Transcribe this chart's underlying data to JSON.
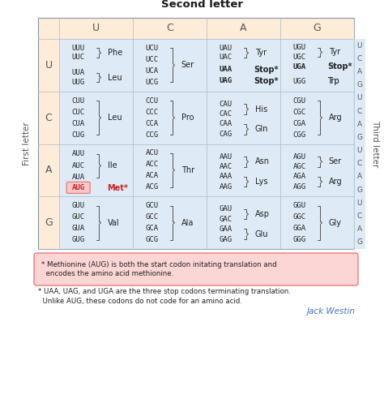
{
  "title": "Second letter",
  "first_letter_label": "First letter",
  "third_letter_label": "Third letter",
  "second_letters": [
    "U",
    "C",
    "A",
    "G"
  ],
  "first_letters": [
    "U",
    "C",
    "A",
    "G"
  ],
  "third_letters": [
    "U",
    "C",
    "A",
    "G"
  ],
  "bg_color": "#ffffff",
  "header_bg": "#fdecd8",
  "cell_bg": "#deeaf5",
  "row_header_bg": "#fdecd8",
  "note1_bg": "#fcd5d5",
  "note1_border": "#e87070",
  "title_fontsize": 9.5,
  "header_fontsize": 9,
  "row_header_fontsize": 9,
  "cell_fontsize": 6.5,
  "amino_fontsize": 7,
  "note_fontsize": 6.2,
  "attr_fontsize": 7.5,
  "label_fontsize": 7.5,
  "note1": "* Methionine (AUG) is both the start codon initating translation and\n  encodes the amino acid methionine.",
  "note2": "* UAA, UAG, and UGA are the three stop codons terminating translation.\n  Unlike AUG, these codons do not code for an amino acid.",
  "attribution": "Jack Westin",
  "attr_color": "#4472c4",
  "codon_color": "#222222",
  "stop_color": "#222222",
  "met_color": "#cc2222",
  "aug_box_fill": "#f8c8c8",
  "aug_box_edge": "#e87070"
}
